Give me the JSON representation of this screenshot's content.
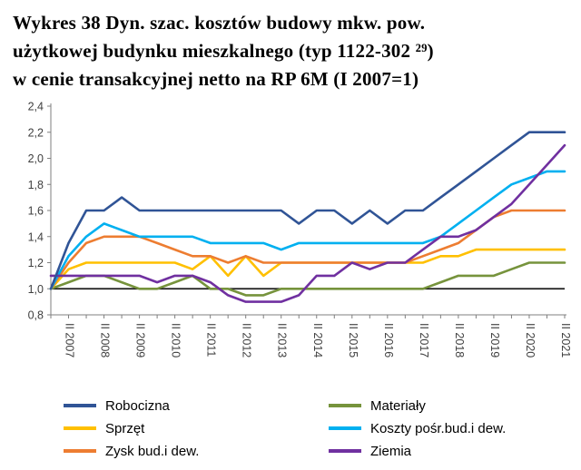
{
  "title": {
    "line1": "Wykres 38 Dyn. szac. kosztów budowy mkw. pow.",
    "line2": "użytkowej budynku mieszkalnego (typ 1122-302 ²⁹)",
    "line3": "w cenie transakcyjnej netto na RP 6M (I 2007=1)"
  },
  "chart_data": {
    "type": "line",
    "title": "Wykres 38 Dyn. szac. kosztów budowy mkw. pow. użytkowej budynku mieszkalnego (typ 1122-302 ²⁹) w cenie transakcyjnej netto na RP 6M (I 2007=1)",
    "ylim": [
      0.8,
      2.4
    ],
    "baseline": 1.0,
    "grid": false,
    "legend_position": "bottom",
    "y_ticks": [
      {
        "label": "0,8",
        "value": 0.8
      },
      {
        "label": "1,0",
        "value": 1.0
      },
      {
        "label": "1,2",
        "value": 1.2
      },
      {
        "label": "1,4",
        "value": 1.4
      },
      {
        "label": "1,6",
        "value": 1.6
      },
      {
        "label": "1,8",
        "value": 1.8
      },
      {
        "label": "2,0",
        "value": 2.0
      },
      {
        "label": "2,2",
        "value": 2.2
      },
      {
        "label": "2,4",
        "value": 2.4
      }
    ],
    "x": [
      "I 2007",
      "II 2007",
      "I 2008",
      "II 2008",
      "I 2009",
      "II 2009",
      "I 2010",
      "II 2010",
      "I 2011",
      "II 2011",
      "I 2012",
      "II 2012",
      "I 2013",
      "II 2013",
      "I 2014",
      "II 2014",
      "I 2015",
      "II 2015",
      "I 2016",
      "II 2016",
      "I 2017",
      "II 2017",
      "I 2018",
      "II 2018",
      "I 2019",
      "II 2019",
      "I 2020",
      "II 2020",
      "I 2021",
      "II 2021"
    ],
    "x_axis_tick_labels": [
      "II 2007",
      "II 2008",
      "II 2009",
      "II 2010",
      "II 2011",
      "II 2012",
      "II 2013",
      "II 2014",
      "II 2015",
      "II 2016",
      "II 2017",
      "II 2018",
      "II 2019",
      "II 2020",
      "II 2021"
    ],
    "series": [
      {
        "name": "Robocizna",
        "color": "#305496",
        "values": [
          1.0,
          1.35,
          1.6,
          1.6,
          1.7,
          1.6,
          1.6,
          1.6,
          1.6,
          1.6,
          1.6,
          1.6,
          1.6,
          1.6,
          1.5,
          1.6,
          1.6,
          1.5,
          1.6,
          1.5,
          1.6,
          1.6,
          1.7,
          1.8,
          1.9,
          2.0,
          2.1,
          2.2,
          2.2,
          2.2
        ]
      },
      {
        "name": "Materiały",
        "color": "#76933C",
        "values": [
          1.0,
          1.05,
          1.1,
          1.1,
          1.05,
          1.0,
          1.0,
          1.05,
          1.1,
          1.0,
          1.0,
          0.95,
          0.95,
          1.0,
          1.0,
          1.0,
          1.0,
          1.0,
          1.0,
          1.0,
          1.0,
          1.0,
          1.05,
          1.1,
          1.1,
          1.1,
          1.15,
          1.2,
          1.2,
          1.2
        ]
      },
      {
        "name": "Sprzęt",
        "color": "#FFC000",
        "values": [
          1.0,
          1.15,
          1.2,
          1.2,
          1.2,
          1.2,
          1.2,
          1.2,
          1.15,
          1.25,
          1.1,
          1.25,
          1.1,
          1.2,
          1.2,
          1.2,
          1.2,
          1.2,
          1.2,
          1.2,
          1.2,
          1.2,
          1.25,
          1.25,
          1.3,
          1.3,
          1.3,
          1.3,
          1.3,
          1.3
        ]
      },
      {
        "name": "Koszty pośr.bud.i dew.",
        "color": "#00B0F0",
        "values": [
          1.0,
          1.25,
          1.4,
          1.5,
          1.45,
          1.4,
          1.4,
          1.4,
          1.4,
          1.35,
          1.35,
          1.35,
          1.35,
          1.3,
          1.35,
          1.35,
          1.35,
          1.35,
          1.35,
          1.35,
          1.35,
          1.35,
          1.4,
          1.5,
          1.6,
          1.7,
          1.8,
          1.85,
          1.9,
          1.9
        ]
      },
      {
        "name": "Zysk bud.i dew.",
        "color": "#ED7D31",
        "values": [
          1.0,
          1.2,
          1.35,
          1.4,
          1.4,
          1.4,
          1.35,
          1.3,
          1.25,
          1.25,
          1.2,
          1.25,
          1.2,
          1.2,
          1.2,
          1.2,
          1.2,
          1.2,
          1.2,
          1.2,
          1.2,
          1.25,
          1.3,
          1.35,
          1.45,
          1.55,
          1.6,
          1.6,
          1.6,
          1.6
        ]
      },
      {
        "name": "Ziemia",
        "color": "#7030A0",
        "values": [
          1.1,
          1.1,
          1.1,
          1.1,
          1.1,
          1.1,
          1.05,
          1.1,
          1.1,
          1.05,
          0.95,
          0.9,
          0.9,
          0.9,
          0.95,
          1.1,
          1.1,
          1.2,
          1.15,
          1.2,
          1.2,
          1.3,
          1.4,
          1.4,
          1.45,
          1.55,
          1.65,
          1.8,
          1.95,
          2.1
        ]
      }
    ]
  }
}
